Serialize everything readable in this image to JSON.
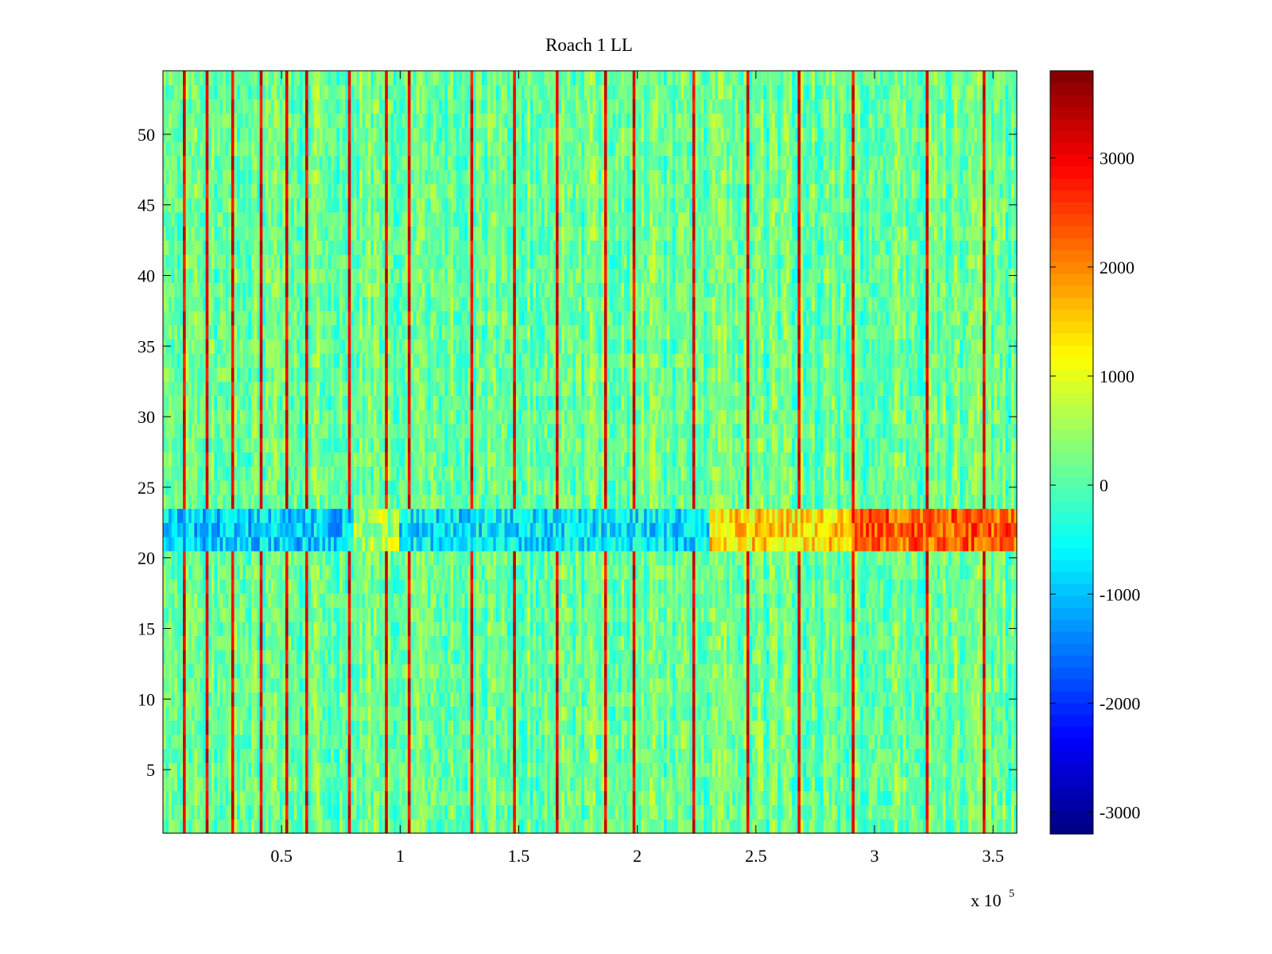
{
  "chart_data": {
    "type": "heatmap",
    "title": "Roach 1 LL",
    "xlabel": "",
    "ylabel": "",
    "x_multiplier": {
      "base": "x 10",
      "exponent": "5"
    },
    "xlim": [
      0,
      360000
    ],
    "ylim": [
      0.5,
      54.5
    ],
    "x_ticks": [
      {
        "value": 50000,
        "label": "0.5"
      },
      {
        "value": 100000,
        "label": "1"
      },
      {
        "value": 150000,
        "label": "1.5"
      },
      {
        "value": 200000,
        "label": "2"
      },
      {
        "value": 250000,
        "label": "2.5"
      },
      {
        "value": 300000,
        "label": "3"
      },
      {
        "value": 350000,
        "label": "3.5"
      }
    ],
    "y_ticks": [
      {
        "value": 5,
        "label": "5"
      },
      {
        "value": 10,
        "label": "10"
      },
      {
        "value": 15,
        "label": "15"
      },
      {
        "value": 20,
        "label": "20"
      },
      {
        "value": 25,
        "label": "25"
      },
      {
        "value": 30,
        "label": "30"
      },
      {
        "value": 35,
        "label": "35"
      },
      {
        "value": 40,
        "label": "40"
      },
      {
        "value": 45,
        "label": "45"
      },
      {
        "value": 50,
        "label": "50"
      }
    ],
    "rows": 54,
    "colorbar": {
      "colormap": "jet",
      "clim": [
        -3200,
        3800
      ],
      "ticks": [
        {
          "value": 3000,
          "label": "3000"
        },
        {
          "value": 2000,
          "label": "2000"
        },
        {
          "value": 1000,
          "label": "1000"
        },
        {
          "value": 0,
          "label": "0"
        },
        {
          "value": -1000,
          "label": "-1000"
        },
        {
          "value": -2000,
          "label": "-2000"
        },
        {
          "value": -3000,
          "label": "-3000"
        }
      ]
    },
    "background_level": 150,
    "spike_columns_x": [
      8000,
      17500,
      28500,
      41000,
      51500,
      60000,
      78500,
      94000,
      103000,
      130000,
      148000,
      165000,
      186000,
      198000,
      223000,
      246000,
      268000,
      290000,
      321000,
      345000
    ],
    "band_rows": {
      "from": 21,
      "to": 23
    },
    "band_pattern": [
      {
        "x_from": 0,
        "x_to": 80000,
        "level": -900
      },
      {
        "x_from": 80000,
        "x_to": 100000,
        "level": 600
      },
      {
        "x_from": 100000,
        "x_to": 230000,
        "level": -700
      },
      {
        "x_from": 230000,
        "x_to": 290000,
        "level": 1400
      },
      {
        "x_from": 290000,
        "x_to": 360000,
        "level": 2300
      }
    ]
  }
}
